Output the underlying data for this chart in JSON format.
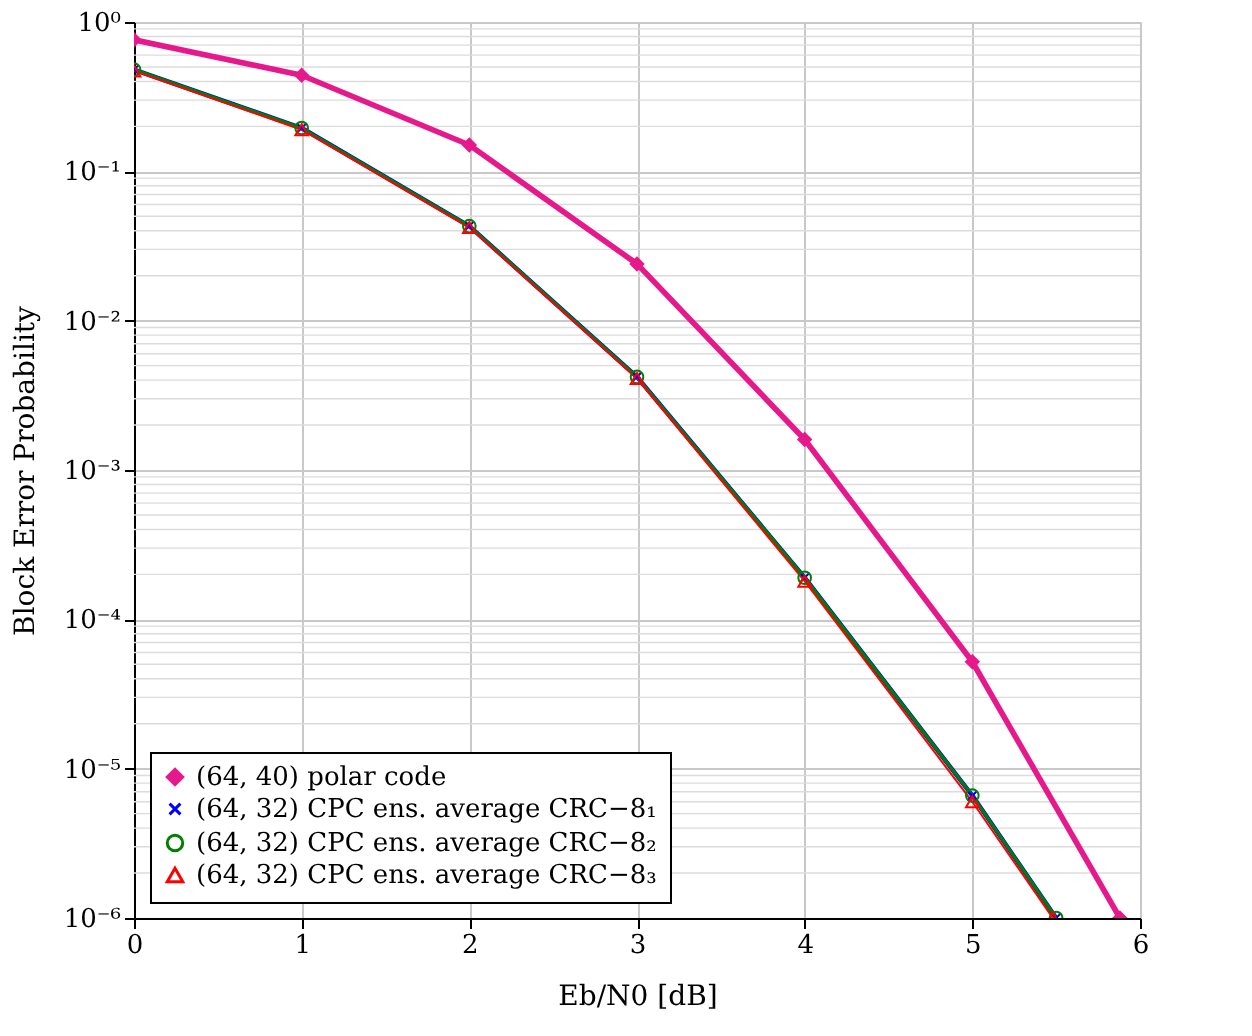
{
  "chart_data": {
    "type": "line",
    "xlabel": "Eb/N0 [dB]",
    "ylabel": "Block Error Probability",
    "log": "y",
    "grid": true,
    "legend": "bottom left",
    "xlim": [
      0,
      6
    ],
    "xticks": [
      0,
      1,
      2,
      3,
      4,
      5,
      6
    ],
    "ylim": [
      1e-06,
      1
    ],
    "yticks": [
      {
        "value": 1e-06,
        "label": "10⁻⁶"
      },
      {
        "value": 1e-05,
        "label": "10⁻⁵"
      },
      {
        "value": 0.0001,
        "label": "10⁻⁴"
      },
      {
        "value": 0.001,
        "label": "10⁻³"
      },
      {
        "value": 0.01,
        "label": "10⁻²"
      },
      {
        "value": 0.1,
        "label": "10⁻¹"
      },
      {
        "value": 1,
        "label": "10⁰"
      }
    ],
    "series": [
      {
        "name": "(64, 40) polar code",
        "color": "#e6198c",
        "marker": "diamond",
        "x": [
          0,
          1,
          2,
          3,
          4,
          5,
          5.88
        ],
        "values": [
          0.76,
          0.44,
          0.15,
          0.024,
          0.0016,
          5.2e-05,
          1e-06
        ]
      },
      {
        "name": "(64, 32) CPC ens. average CRC−8₁",
        "color": "#0000ff",
        "marker": "cross",
        "x": [
          0,
          1,
          2,
          3,
          4,
          5,
          5.5
        ],
        "values": [
          0.48,
          0.195,
          0.043,
          0.0042,
          0.00019,
          6.6e-06,
          1e-06
        ]
      },
      {
        "name": "(64, 32) CPC ens. average CRC−8₂",
        "color": "#008000",
        "marker": "circle",
        "x": [
          0,
          1,
          2,
          3,
          4,
          5,
          5.5
        ],
        "values": [
          0.48,
          0.195,
          0.043,
          0.0042,
          0.00019,
          6.6e-06,
          1e-06
        ]
      },
      {
        "name": "(64, 32) CPC ens. average CRC−8₃",
        "color": "#ff0000",
        "marker": "triangle",
        "x": [
          0,
          1,
          2,
          3,
          4,
          5,
          5.48
        ],
        "values": [
          0.47,
          0.19,
          0.042,
          0.0041,
          0.00018,
          6e-06,
          1e-06
        ]
      }
    ]
  }
}
